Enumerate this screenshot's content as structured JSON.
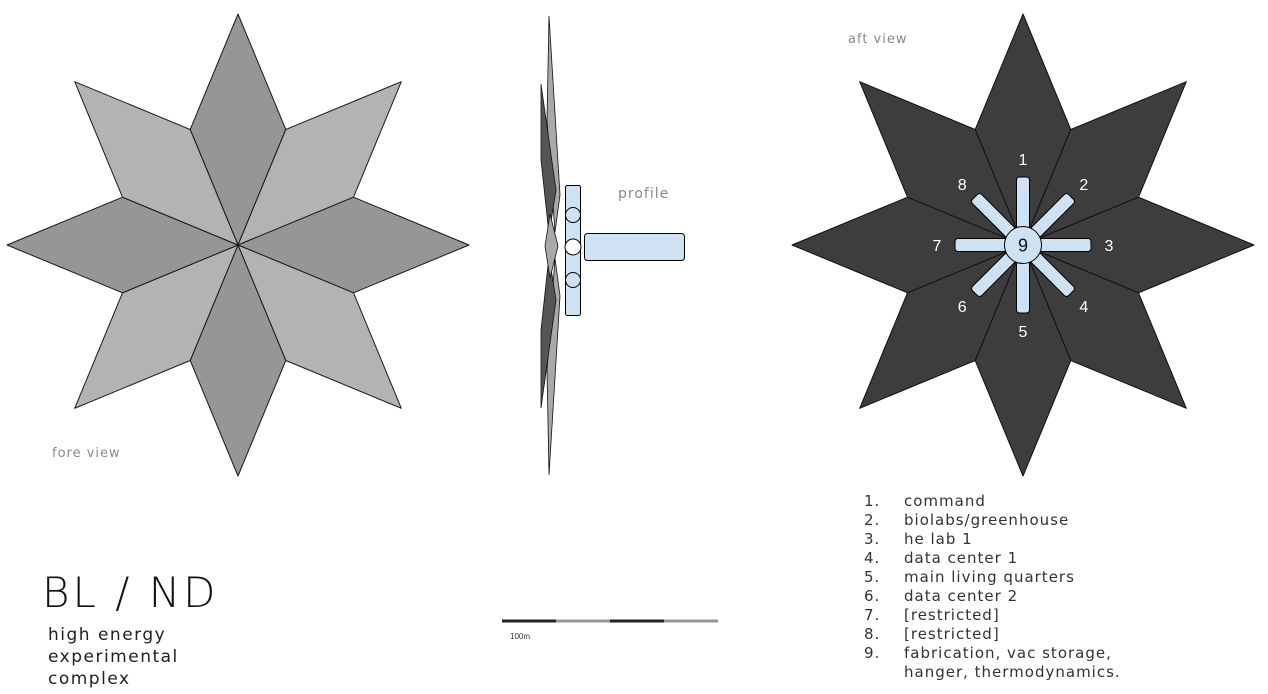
{
  "views": {
    "fore": {
      "label": "FORE VIEW",
      "light_fill": "#b3b3b3",
      "dark_fill": "#969696"
    },
    "profile": {
      "label": "PROFILE",
      "panel_fill": "#a9a9a9",
      "panel_dark_fill": "#555555"
    },
    "aft": {
      "label": "AFT VIEW",
      "fill": "#3d3d3d"
    }
  },
  "modules": {
    "fill": "#cfe2f3",
    "stroke": "#000000",
    "center_number": "9",
    "numbers": [
      "1",
      "2",
      "3",
      "4",
      "5",
      "6",
      "7",
      "8"
    ]
  },
  "project": {
    "title": "BL / ND",
    "subtitle_lines": [
      "HIGH energy",
      "experimental",
      "complex"
    ]
  },
  "scale": {
    "label": "100m",
    "colors": [
      "#222222",
      "#999999"
    ]
  },
  "legend": [
    {
      "num": "1.",
      "text": "command"
    },
    {
      "num": "2.",
      "text": "BIOLABS/GREENHOUSE"
    },
    {
      "num": "3.",
      "text": "HE LAB 1"
    },
    {
      "num": "4.",
      "text": "Data Center 1"
    },
    {
      "num": "5.",
      "text": "MAIN LIVING QUARTERS"
    },
    {
      "num": "6.",
      "text": "Data Center 2"
    },
    {
      "num": "7.",
      "text": "[RESTRICTED]"
    },
    {
      "num": "8.",
      "text": "[RESTRICTED]"
    },
    {
      "num": "9.",
      "text": "Fabrication, vac storage,\nhanger, thermodynamics."
    }
  ]
}
